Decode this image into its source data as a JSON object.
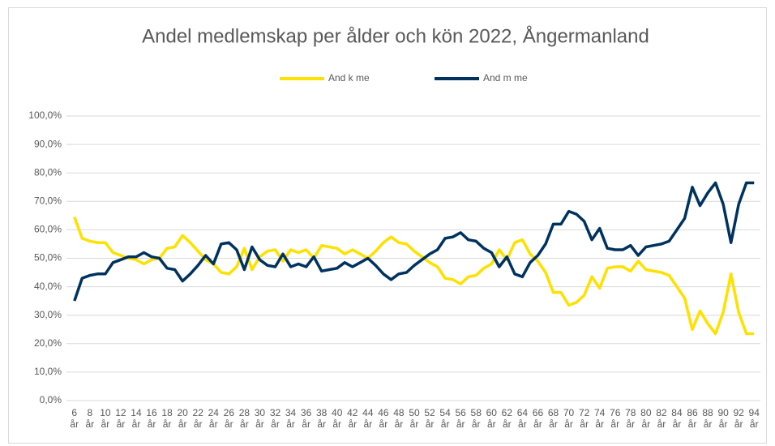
{
  "chart_data": {
    "type": "line",
    "title": "Andel medlemskap per ålder och kön 2022, Ångermanland",
    "categories": [
      "6 år",
      null,
      "8 år",
      null,
      "10 år",
      null,
      "12 år",
      null,
      "14 år",
      null,
      "16 år",
      null,
      "18 år",
      null,
      "20 år",
      null,
      "22 år",
      null,
      "24 år",
      null,
      "26 år",
      null,
      "28 år",
      null,
      "30 år",
      null,
      "32 år",
      null,
      "34 år",
      null,
      "36 år",
      null,
      "38 år",
      null,
      "40 år",
      null,
      "42 år",
      null,
      "44 år",
      null,
      "46 år",
      null,
      "48 år",
      null,
      "50 år",
      null,
      "52 år",
      null,
      "54 år",
      null,
      "56 år",
      null,
      "58 år",
      null,
      "60 år",
      null,
      "62 år",
      null,
      "64 år",
      null,
      "66 år",
      null,
      "68 år",
      null,
      "70 år",
      null,
      "72 år",
      null,
      "74 år",
      null,
      "76 år",
      null,
      "78 år",
      null,
      "80 år",
      null,
      "82 år",
      null,
      "84 år",
      null,
      "86 år",
      null,
      "88 år",
      null,
      "90 år",
      null,
      "92 år",
      null,
      "94 år"
    ],
    "series": [
      {
        "name": "And k me",
        "color": "#ffe100",
        "values": [
          64.5,
          57,
          56,
          55.5,
          55.5,
          52,
          51,
          50,
          49.5,
          48,
          49.5,
          50,
          53.5,
          54,
          58,
          55.5,
          52.5,
          49.5,
          48,
          45,
          44.5,
          47,
          53.5,
          46,
          50.5,
          52.5,
          53,
          49,
          53,
          52,
          53,
          50,
          54.5,
          54,
          53.5,
          51.5,
          53,
          51.5,
          50,
          52.5,
          55.5,
          57.5,
          55.5,
          55,
          52.5,
          50.5,
          48.5,
          47,
          43,
          42.5,
          41,
          43.5,
          44,
          46.5,
          48,
          53,
          49.5,
          55.5,
          56.5,
          51.5,
          49,
          45,
          38,
          38,
          33.5,
          34.5,
          37,
          43.5,
          39.5,
          46.5,
          47,
          47,
          45.5,
          49,
          46,
          45.5,
          45,
          44,
          40,
          36,
          25,
          31.5,
          27,
          23.5,
          31,
          44.5,
          31,
          23.5,
          23.5
        ]
      },
      {
        "name": "And m me",
        "color": "#00325f",
        "values": [
          35,
          43,
          44,
          44.5,
          44.5,
          48.5,
          49.5,
          50.5,
          50.5,
          52,
          50.5,
          50,
          46.5,
          46,
          42,
          44.5,
          47.5,
          51,
          48,
          55,
          55.5,
          53,
          46,
          54,
          49.5,
          47.5,
          47,
          51.5,
          47,
          48,
          47,
          50.5,
          45.5,
          46,
          46.5,
          48.5,
          47,
          48.5,
          50,
          47.5,
          44.5,
          42.5,
          44.5,
          45,
          47.5,
          49.5,
          51.5,
          53,
          57,
          57.5,
          59,
          56.5,
          56,
          53.5,
          52,
          47,
          50.5,
          44.5,
          43.5,
          48.5,
          51,
          55,
          62,
          62,
          66.5,
          65.5,
          63,
          56.5,
          60.5,
          53.5,
          53,
          53,
          54.5,
          51,
          54,
          54.5,
          55,
          56,
          60,
          64,
          75,
          68.5,
          73,
          76.5,
          69,
          55.5,
          69,
          76.5,
          76.5
        ]
      }
    ],
    "ylim": [
      0,
      100
    ],
    "yticks": [
      {
        "value": 0,
        "label": "0,0%"
      },
      {
        "value": 10,
        "label": "10,0%"
      },
      {
        "value": 20,
        "label": "20,0%"
      },
      {
        "value": 30,
        "label": "30,0%"
      },
      {
        "value": 40,
        "label": "40,0%"
      },
      {
        "value": 50,
        "label": "50,0%"
      },
      {
        "value": 60,
        "label": "60,0%"
      },
      {
        "value": 70,
        "label": "70,0%"
      },
      {
        "value": 80,
        "label": "80,0%"
      },
      {
        "value": 90,
        "label": "90,0%"
      },
      {
        "value": 100,
        "label": "100,0%"
      }
    ],
    "grid": true,
    "legend": "top"
  }
}
